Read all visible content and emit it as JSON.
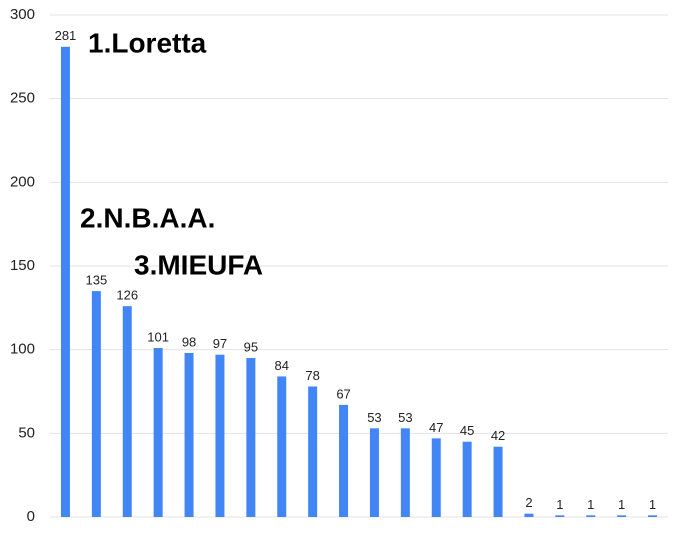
{
  "chart_data": {
    "type": "bar",
    "categories": [
      null,
      null,
      null,
      null,
      null,
      null,
      null,
      null,
      null,
      null,
      null,
      null,
      null,
      null,
      null,
      null,
      null,
      null,
      null,
      null
    ],
    "values": [
      281,
      135,
      126,
      101,
      98,
      97,
      95,
      84,
      78,
      67,
      53,
      53,
      47,
      45,
      42,
      2,
      1,
      1,
      1,
      1
    ],
    "color": "#4285f4",
    "ylim": [
      0,
      300
    ],
    "yticks": [
      0,
      50,
      100,
      150,
      200,
      250,
      300
    ],
    "grid": true,
    "annotations": [
      "1.Loretta",
      "2.N.B.A.A.",
      "3.MIEUFA"
    ]
  }
}
